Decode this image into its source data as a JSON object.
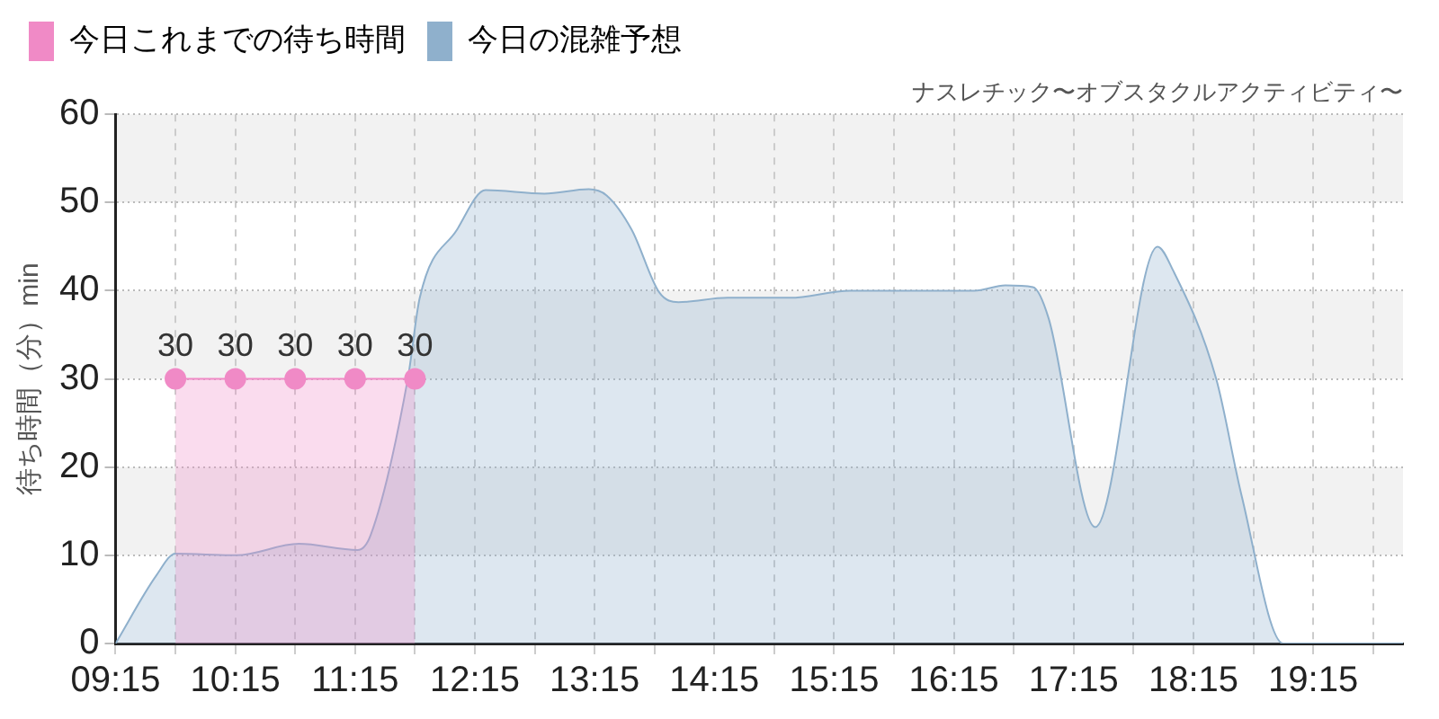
{
  "chart_data": {
    "type": "area",
    "subtitle": "ナスレチック〜オブスタクルアクティビティ〜",
    "ylabel": "待ち時間（分）min",
    "series": [
      {
        "name": "今日これまでの待ち時間",
        "color": "#f08ac6",
        "marker": "circle",
        "data_labels": true,
        "x": [
          9.75,
          10.25,
          10.75,
          11.25,
          11.75
        ],
        "values": [
          30,
          30,
          30,
          30,
          30
        ]
      },
      {
        "name": "今日の混雑予想",
        "color": "#8fb0cc",
        "marker": "none",
        "x": [
          9.25,
          9.59,
          9.75,
          10.26,
          10.78,
          11.27,
          11.38,
          11.69,
          11.79,
          12.1,
          12.34,
          12.83,
          13.2,
          13.35,
          13.56,
          13.79,
          13.95,
          14.36,
          14.88,
          15.38,
          15.9,
          16.42,
          16.68,
          16.91,
          17.04,
          17.43,
          17.95,
          18.08,
          18.44,
          18.65,
          19.0,
          20.0
        ],
        "values": [
          0,
          7.7,
          10.2,
          10,
          11.3,
          10.6,
          12.3,
          30,
          39.2,
          46.9,
          51.4,
          51,
          51.5,
          50.8,
          46.9,
          39.8,
          38.7,
          39.2,
          39.2,
          40,
          40,
          40,
          40.6,
          40.4,
          36.9,
          13.2,
          45,
          42.3,
          30,
          16.9,
          0,
          0
        ]
      }
    ],
    "xlim": [
      9.25,
      20.0
    ],
    "xticks": [
      {
        "value": 9.25,
        "label": "09:15"
      },
      {
        "value": 9.75,
        "label": null
      },
      {
        "value": 10.25,
        "label": "10:15"
      },
      {
        "value": 10.75,
        "label": null
      },
      {
        "value": 11.25,
        "label": "11:15"
      },
      {
        "value": 11.75,
        "label": null
      },
      {
        "value": 12.25,
        "label": "12:15"
      },
      {
        "value": 12.75,
        "label": null
      },
      {
        "value": 13.25,
        "label": "13:15"
      },
      {
        "value": 13.75,
        "label": null
      },
      {
        "value": 14.25,
        "label": "14:15"
      },
      {
        "value": 14.75,
        "label": null
      },
      {
        "value": 15.25,
        "label": "15:15"
      },
      {
        "value": 15.75,
        "label": null
      },
      {
        "value": 16.25,
        "label": "16:15"
      },
      {
        "value": 16.75,
        "label": null
      },
      {
        "value": 17.25,
        "label": "17:15"
      },
      {
        "value": 17.75,
        "label": null
      },
      {
        "value": 18.25,
        "label": "18:15"
      },
      {
        "value": 18.75,
        "label": null
      },
      {
        "value": 19.25,
        "label": "19:15"
      },
      {
        "value": 19.75,
        "label": null
      }
    ],
    "ylim": [
      0,
      60
    ],
    "yticks": [
      0,
      10,
      20,
      30,
      40,
      50,
      60
    ],
    "bands": [
      {
        "axis": "y",
        "from": 10,
        "to": 20,
        "color": "#f2f2f2"
      },
      {
        "axis": "y",
        "from": 30,
        "to": 40,
        "color": "#f2f2f2"
      },
      {
        "axis": "y",
        "from": 50,
        "to": 60,
        "color": "#f2f2f2"
      }
    ],
    "grid": true,
    "legend": "top left"
  }
}
